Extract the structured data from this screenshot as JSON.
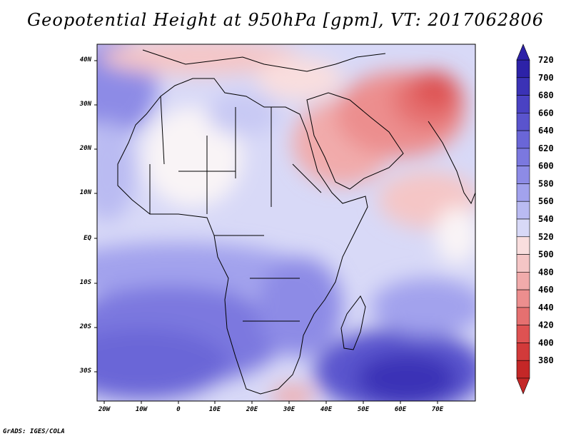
{
  "title": "Geopotential Height at 950hPa [gpm], VT: 2017062806",
  "footer": "GrADS: IGES/COLA",
  "map": {
    "lat_labels": [
      "40N",
      "30N",
      "20N",
      "10N",
      "EQ",
      "10S",
      "20S",
      "30S"
    ],
    "lon_labels": [
      "20W",
      "10W",
      "0",
      "10E",
      "20E",
      "30E",
      "40E",
      "50E",
      "60E",
      "70E"
    ]
  },
  "colorbar": {
    "levels": [
      "720",
      "700",
      "680",
      "660",
      "640",
      "620",
      "600",
      "580",
      "560",
      "540",
      "520",
      "500",
      "480",
      "460",
      "440",
      "420",
      "400",
      "380"
    ],
    "colors": [
      "#2d22a8",
      "#3b32b6",
      "#4a42c3",
      "#5a54cd",
      "#6a66d7",
      "#7b78df",
      "#8d8be6",
      "#a2a2ed",
      "#babbf2",
      "#d8d9f7",
      "#f9dede",
      "#f5c6c6",
      "#f1abab",
      "#ec8e8e",
      "#e57070",
      "#de5252",
      "#d23a3a",
      "#c42727"
    ]
  }
}
